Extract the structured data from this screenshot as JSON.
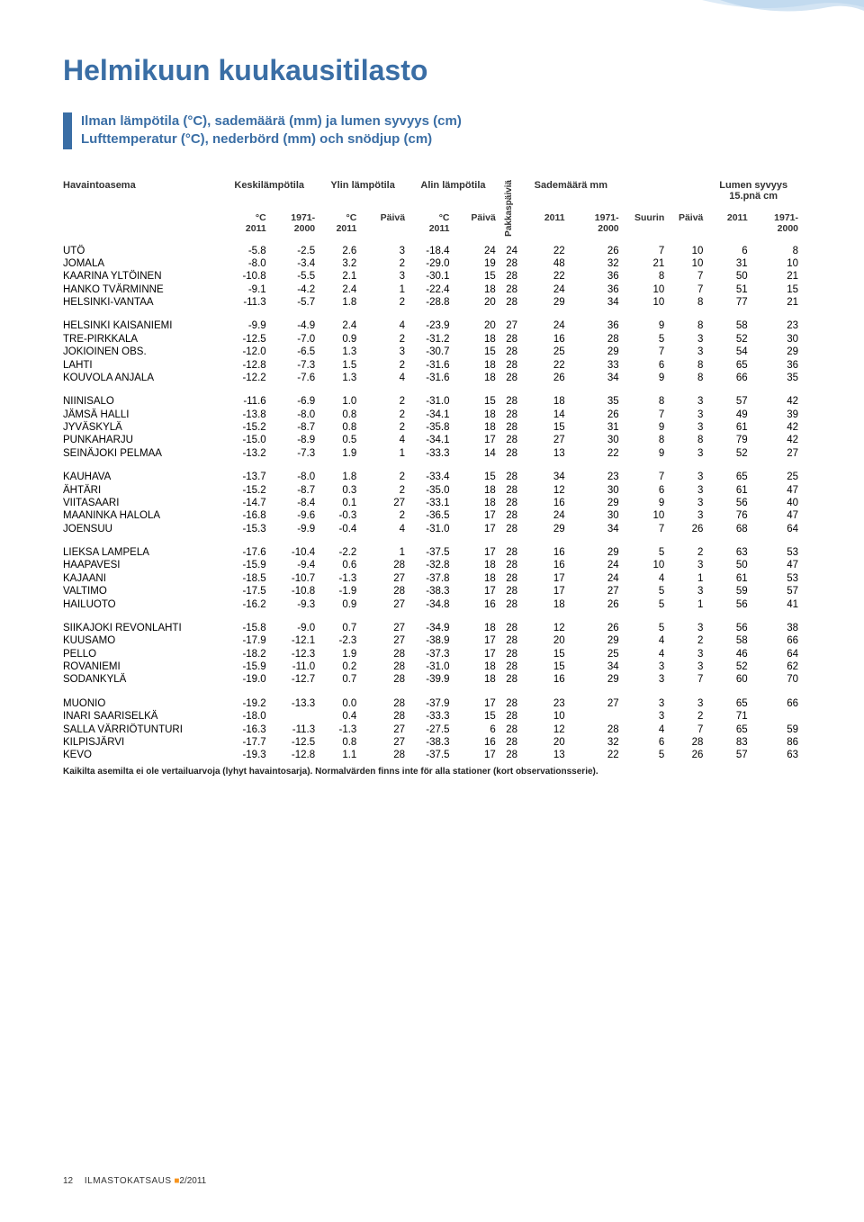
{
  "title": "Helmikuun kuukausitilasto",
  "subtitle1": "Ilman lämpötila (°C), sademäärä (mm) ja lumen syvyys (cm)",
  "subtitle2": "Lufttemperatur (°C), nederbörd (mm) och snödjup (cm)",
  "headers": {
    "station": "Havaintoasema",
    "avg_temp": "Keskilämpötila",
    "max_temp": "Ylin lämpötila",
    "min_temp": "Alin lämpötila",
    "precip": "Sademäärä mm",
    "snow": "Lumen syvyys",
    "snow_sub": "15.pnä cm",
    "frost_days": "Pakkaspäiviä",
    "c2011": "°C\n2011",
    "c1971": "1971-\n2000",
    "paiva": "Päivä",
    "suurin": "Suurin",
    "y2011": "2011",
    "y1971": "1971-\n2000"
  },
  "groups": [
    [
      {
        "n": "UTÖ",
        "v": [
          "-5.8",
          "-2.5",
          "2.6",
          "3",
          "-18.4",
          "24",
          "24",
          "22",
          "26",
          "7",
          "10",
          "6",
          "8"
        ]
      },
      {
        "n": "JOMALA",
        "v": [
          "-8.0",
          "-3.4",
          "3.2",
          "2",
          "-29.0",
          "19",
          "28",
          "48",
          "32",
          "21",
          "10",
          "31",
          "10"
        ]
      },
      {
        "n": "KAARINA YLTÖINEN",
        "v": [
          "-10.8",
          "-5.5",
          "2.1",
          "3",
          "-30.1",
          "15",
          "28",
          "22",
          "36",
          "8",
          "7",
          "50",
          "21"
        ]
      },
      {
        "n": "HANKO TVÄRMINNE",
        "v": [
          "-9.1",
          "-4.2",
          "2.4",
          "1",
          "-22.4",
          "18",
          "28",
          "24",
          "36",
          "10",
          "7",
          "51",
          "15"
        ]
      },
      {
        "n": "HELSINKI-VANTAA",
        "v": [
          "-11.3",
          "-5.7",
          "1.8",
          "2",
          "-28.8",
          "20",
          "28",
          "29",
          "34",
          "10",
          "8",
          "77",
          "21"
        ]
      }
    ],
    [
      {
        "n": "HELSINKI KAISANIEMI",
        "v": [
          "-9.9",
          "-4.9",
          "2.4",
          "4",
          "-23.9",
          "20",
          "27",
          "24",
          "36",
          "9",
          "8",
          "58",
          "23"
        ]
      },
      {
        "n": "TRE-PIRKKALA",
        "v": [
          "-12.5",
          "-7.0",
          "0.9",
          "2",
          "-31.2",
          "18",
          "28",
          "16",
          "28",
          "5",
          "3",
          "52",
          "30"
        ]
      },
      {
        "n": "JOKIOINEN OBS.",
        "v": [
          "-12.0",
          "-6.5",
          "1.3",
          "3",
          "-30.7",
          "15",
          "28",
          "25",
          "29",
          "7",
          "3",
          "54",
          "29"
        ]
      },
      {
        "n": "LAHTI",
        "v": [
          "-12.8",
          "-7.3",
          "1.5",
          "2",
          "-31.6",
          "18",
          "28",
          "22",
          "33",
          "6",
          "8",
          "65",
          "36"
        ]
      },
      {
        "n": "KOUVOLA ANJALA",
        "v": [
          "-12.2",
          "-7.6",
          "1.3",
          "4",
          "-31.6",
          "18",
          "28",
          "26",
          "34",
          "9",
          "8",
          "66",
          "35"
        ]
      }
    ],
    [
      {
        "n": "NIINISALO",
        "v": [
          "-11.6",
          "-6.9",
          "1.0",
          "2",
          "-31.0",
          "15",
          "28",
          "18",
          "35",
          "8",
          "3",
          "57",
          "42"
        ]
      },
      {
        "n": "JÄMSÄ HALLI",
        "v": [
          "-13.8",
          "-8.0",
          "0.8",
          "2",
          "-34.1",
          "18",
          "28",
          "14",
          "26",
          "7",
          "3",
          "49",
          "39"
        ]
      },
      {
        "n": "JYVÄSKYLÄ",
        "v": [
          "-15.2",
          "-8.7",
          "0.8",
          "2",
          "-35.8",
          "18",
          "28",
          "15",
          "31",
          "9",
          "3",
          "61",
          "42"
        ]
      },
      {
        "n": "PUNKAHARJU",
        "v": [
          "-15.0",
          "-8.9",
          "0.5",
          "4",
          "-34.1",
          "17",
          "28",
          "27",
          "30",
          "8",
          "8",
          "79",
          "42"
        ]
      },
      {
        "n": "SEINÄJOKI PELMAA",
        "v": [
          "-13.2",
          "-7.3",
          "1.9",
          "1",
          "-33.3",
          "14",
          "28",
          "13",
          "22",
          "9",
          "3",
          "52",
          "27"
        ]
      }
    ],
    [
      {
        "n": "KAUHAVA",
        "v": [
          "-13.7",
          "-8.0",
          "1.8",
          "2",
          "-33.4",
          "15",
          "28",
          "34",
          "23",
          "7",
          "3",
          "65",
          "25"
        ]
      },
      {
        "n": "ÄHTÄRI",
        "v": [
          "-15.2",
          "-8.7",
          "0.3",
          "2",
          "-35.0",
          "18",
          "28",
          "12",
          "30",
          "6",
          "3",
          "61",
          "47"
        ]
      },
      {
        "n": "VIITASAARI",
        "v": [
          "-14.7",
          "-8.4",
          "0.1",
          "27",
          "-33.1",
          "18",
          "28",
          "16",
          "29",
          "9",
          "3",
          "56",
          "40"
        ]
      },
      {
        "n": "MAANINKA HALOLA",
        "v": [
          "-16.8",
          "-9.6",
          "-0.3",
          "2",
          "-36.5",
          "17",
          "28",
          "24",
          "30",
          "10",
          "3",
          "76",
          "47"
        ]
      },
      {
        "n": "JOENSUU",
        "v": [
          "-15.3",
          "-9.9",
          "-0.4",
          "4",
          "-31.0",
          "17",
          "28",
          "29",
          "34",
          "7",
          "26",
          "68",
          "64"
        ]
      }
    ],
    [
      {
        "n": "LIEKSA LAMPELA",
        "v": [
          "-17.6",
          "-10.4",
          "-2.2",
          "1",
          "-37.5",
          "17",
          "28",
          "16",
          "29",
          "5",
          "2",
          "63",
          "53"
        ]
      },
      {
        "n": "HAAPAVESI",
        "v": [
          "-15.9",
          "-9.4",
          "0.6",
          "28",
          "-32.8",
          "18",
          "28",
          "16",
          "24",
          "10",
          "3",
          "50",
          "47"
        ]
      },
      {
        "n": "KAJAANI",
        "v": [
          "-18.5",
          "-10.7",
          "-1.3",
          "27",
          "-37.8",
          "18",
          "28",
          "17",
          "24",
          "4",
          "1",
          "61",
          "53"
        ]
      },
      {
        "n": "VALTIMO",
        "v": [
          "-17.5",
          "-10.8",
          "-1.9",
          "28",
          "-38.3",
          "17",
          "28",
          "17",
          "27",
          "5",
          "3",
          "59",
          "57"
        ]
      },
      {
        "n": "HAILUOTO",
        "v": [
          "-16.2",
          "-9.3",
          "0.9",
          "27",
          "-34.8",
          "16",
          "28",
          "18",
          "26",
          "5",
          "1",
          "56",
          "41"
        ]
      }
    ],
    [
      {
        "n": "SIIKAJOKI REVONLAHTI",
        "v": [
          "-15.8",
          "-9.0",
          "0.7",
          "27",
          "-34.9",
          "18",
          "28",
          "12",
          "26",
          "5",
          "3",
          "56",
          "38"
        ]
      },
      {
        "n": "KUUSAMO",
        "v": [
          "-17.9",
          "-12.1",
          "-2.3",
          "27",
          "-38.9",
          "17",
          "28",
          "20",
          "29",
          "4",
          "2",
          "58",
          "66"
        ]
      },
      {
        "n": "PELLO",
        "v": [
          "-18.2",
          "-12.3",
          "1.9",
          "28",
          "-37.3",
          "17",
          "28",
          "15",
          "25",
          "4",
          "3",
          "46",
          "64"
        ]
      },
      {
        "n": "ROVANIEMI",
        "v": [
          "-15.9",
          "-11.0",
          "0.2",
          "28",
          "-31.0",
          "18",
          "28",
          "15",
          "34",
          "3",
          "3",
          "52",
          "62"
        ]
      },
      {
        "n": "SODANKYLÄ",
        "v": [
          "-19.0",
          "-12.7",
          "0.7",
          "28",
          "-39.9",
          "18",
          "28",
          "16",
          "29",
          "3",
          "7",
          "60",
          "70"
        ]
      }
    ],
    [
      {
        "n": "MUONIO",
        "v": [
          "-19.2",
          "-13.3",
          "0.0",
          "28",
          "-37.9",
          "17",
          "28",
          "23",
          "27",
          "3",
          "3",
          "65",
          "66"
        ]
      },
      {
        "n": "INARI SAARISELKÄ",
        "v": [
          "-18.0",
          "",
          "0.4",
          "28",
          "-33.3",
          "15",
          "28",
          "10",
          "",
          "3",
          "2",
          "71",
          ""
        ]
      },
      {
        "n": "SALLA VÄRRIÖTUNTURI",
        "v": [
          "-16.3",
          "-11.3",
          "-1.3",
          "27",
          "-27.5",
          "6",
          "28",
          "12",
          "28",
          "4",
          "7",
          "65",
          "59"
        ]
      },
      {
        "n": "KILPISJÄRVI",
        "v": [
          "-17.7",
          "-12.5",
          "0.8",
          "27",
          "-38.3",
          "16",
          "28",
          "20",
          "32",
          "6",
          "28",
          "83",
          "86"
        ]
      },
      {
        "n": "KEVO",
        "v": [
          "-19.3",
          "-12.8",
          "1.1",
          "28",
          "-37.5",
          "17",
          "28",
          "13",
          "22",
          "5",
          "26",
          "57",
          "63"
        ]
      }
    ]
  ],
  "footnote": "Kaikilta asemilta ei ole vertailuarvoja (lyhyt havaintosarja). Normalvärden finns inte för alla stationer (kort observationsserie).",
  "footer": {
    "page": "12",
    "pub": "ILMASTOKATSAUS",
    "issue": "2/2011"
  }
}
